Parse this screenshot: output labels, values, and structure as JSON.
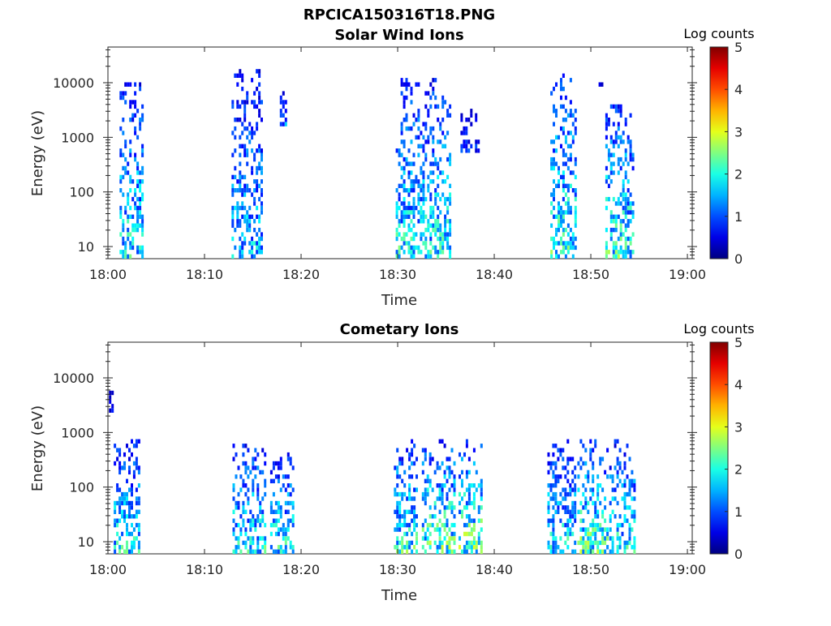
{
  "figure": {
    "title": "RPCICA150316T18.PNG"
  },
  "chart_data": [
    {
      "type": "heatmap",
      "title": "Solar Wind Ions",
      "xlabel": "Time",
      "ylabel": "Energy (eV)",
      "x_ticks": [
        "18:00",
        "18:10",
        "18:20",
        "18:30",
        "18:40",
        "18:50",
        "19:00"
      ],
      "xlim_minutes": [
        0,
        60.5
      ],
      "y_scale": "log",
      "ylim": [
        6,
        45000
      ],
      "y_ticks": [
        "10",
        "100",
        "1000",
        "10000"
      ],
      "colorbar": {
        "label": "Log counts",
        "min": 0,
        "max": 5,
        "ticks": [
          "0",
          "1",
          "2",
          "3",
          "4",
          "5"
        ],
        "colormap": "jet"
      },
      "bursts": [
        {
          "t_start": 1.2,
          "t_end": 3.5,
          "e_low": 6,
          "e_high": 9000,
          "peak_log_counts": 2.6
        },
        {
          "t_start": 12.8,
          "t_end": 16.0,
          "e_low": 6,
          "e_high": 15000,
          "peak_log_counts": 2.2
        },
        {
          "t_start": 17.8,
          "t_end": 18.4,
          "e_low": 1300,
          "e_high": 7000,
          "peak_log_counts": 1.8
        },
        {
          "t_start": 29.8,
          "t_end": 35.5,
          "e_low": 6,
          "e_high": 12000,
          "peak_log_counts": 2.6
        },
        {
          "t_start": 36.5,
          "t_end": 38.5,
          "e_low": 450,
          "e_high": 3000,
          "peak_log_counts": 1.2
        },
        {
          "t_start": 45.8,
          "t_end": 48.5,
          "e_low": 6,
          "e_high": 13000,
          "peak_log_counts": 2.8
        },
        {
          "t_start": 50.8,
          "t_end": 51.2,
          "e_low": 8000,
          "e_high": 10000,
          "peak_log_counts": 0.8
        },
        {
          "t_start": 51.5,
          "t_end": 54.5,
          "e_low": 6,
          "e_high": 5000,
          "peak_log_counts": 2.8
        }
      ]
    },
    {
      "type": "heatmap",
      "title": "Cometary Ions",
      "xlabel": "Time",
      "ylabel": "Energy (eV)",
      "x_ticks": [
        "18:00",
        "18:10",
        "18:20",
        "18:30",
        "18:40",
        "18:50",
        "19:00"
      ],
      "xlim_minutes": [
        0,
        60.5
      ],
      "y_scale": "log",
      "ylim": [
        6,
        45000
      ],
      "y_ticks": [
        "10",
        "100",
        "1000",
        "10000"
      ],
      "colorbar": {
        "label": "Log counts",
        "min": 0,
        "max": 5,
        "ticks": [
          "0",
          "1",
          "2",
          "3",
          "4",
          "5"
        ],
        "colormap": "jet"
      },
      "bursts": [
        {
          "t_start": 0.1,
          "t_end": 0.6,
          "e_low": 2000,
          "e_high": 5000,
          "peak_log_counts": 1.0
        },
        {
          "t_start": 0.6,
          "t_end": 3.3,
          "e_low": 6,
          "e_high": 650,
          "peak_log_counts": 2.6
        },
        {
          "t_start": 12.9,
          "t_end": 16.3,
          "e_low": 6,
          "e_high": 650,
          "peak_log_counts": 2.6
        },
        {
          "t_start": 16.7,
          "t_end": 16.9,
          "e_low": 1500,
          "e_high": 2300,
          "peak_log_counts": 1.2
        },
        {
          "t_start": 16.8,
          "t_end": 19.3,
          "e_low": 6,
          "e_high": 400,
          "peak_log_counts": 2.6
        },
        {
          "t_start": 29.6,
          "t_end": 32.0,
          "e_low": 6,
          "e_high": 650,
          "peak_log_counts": 2.8
        },
        {
          "t_start": 32.5,
          "t_end": 35.8,
          "e_low": 6,
          "e_high": 650,
          "peak_log_counts": 3.1
        },
        {
          "t_start": 36.3,
          "t_end": 38.6,
          "e_low": 6,
          "e_high": 650,
          "peak_log_counts": 3.2
        },
        {
          "t_start": 45.3,
          "t_end": 45.6,
          "e_low": 3500,
          "e_high": 5000,
          "peak_log_counts": 1.0
        },
        {
          "t_start": 45.5,
          "t_end": 48.5,
          "e_low": 6,
          "e_high": 650,
          "peak_log_counts": 2.6
        },
        {
          "t_start": 48.6,
          "t_end": 51.8,
          "e_low": 6,
          "e_high": 650,
          "peak_log_counts": 3.1
        },
        {
          "t_start": 51.9,
          "t_end": 54.5,
          "e_low": 6,
          "e_high": 650,
          "peak_log_counts": 2.6
        }
      ]
    }
  ]
}
